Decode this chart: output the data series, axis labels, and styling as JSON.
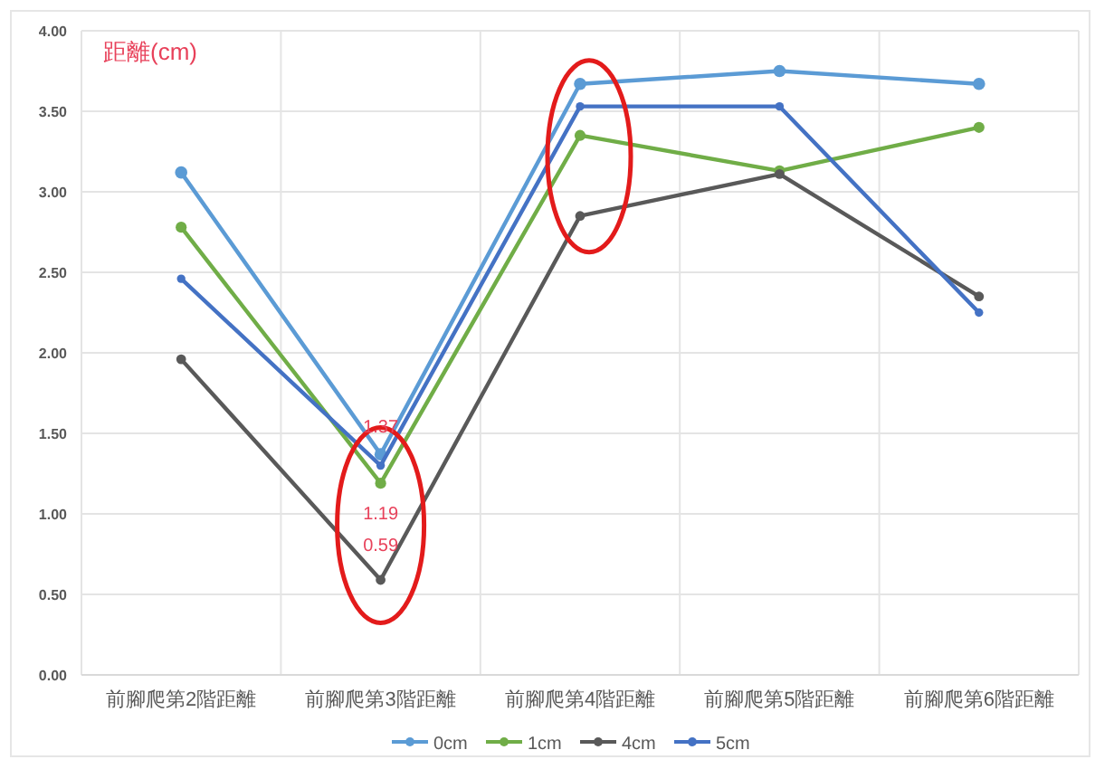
{
  "chart_data": {
    "type": "line",
    "ylabel": "距離(cm)",
    "categories": [
      "前腳爬第2階距離",
      "前腳爬第3階距離",
      "前腳爬第4階距離",
      "前腳爬第5階距離",
      "前腳爬第6階距離"
    ],
    "series": [
      {
        "name": "0cm",
        "color": "#5b9bd5",
        "values": [
          3.12,
          1.37,
          3.67,
          3.75,
          3.67
        ],
        "value_labels": [
          null,
          "1.37",
          null,
          null,
          null
        ]
      },
      {
        "name": "1cm",
        "color": "#70ad47",
        "values": [
          2.78,
          1.19,
          3.35,
          3.13,
          3.4
        ],
        "value_labels": [
          null,
          "1.19",
          null,
          null,
          null
        ]
      },
      {
        "name": "4cm",
        "color": "#595959",
        "values": [
          1.96,
          0.59,
          2.85,
          3.11,
          2.35
        ],
        "value_labels": [
          null,
          "0.59",
          null,
          null,
          null
        ]
      },
      {
        "name": "5cm",
        "color": "#4472c4",
        "values": [
          2.46,
          1.3,
          3.53,
          3.53,
          2.25
        ]
      }
    ],
    "ylim": [
      0,
      4
    ],
    "yticks": [
      {
        "value": 0,
        "label": "0.00"
      },
      {
        "value": 0.5,
        "label": "0.50"
      },
      {
        "value": 1,
        "label": "1.00"
      },
      {
        "value": 1.5,
        "label": "1.50"
      },
      {
        "value": 2,
        "label": "2.00"
      },
      {
        "value": 2.5,
        "label": "2.50"
      },
      {
        "value": 3,
        "label": "3.00"
      },
      {
        "value": 3.5,
        "label": "3.50"
      },
      {
        "value": 4,
        "label": "4.00"
      }
    ],
    "grid": true,
    "legend": "bottom",
    "marker": "circle",
    "line_style": "solid"
  }
}
